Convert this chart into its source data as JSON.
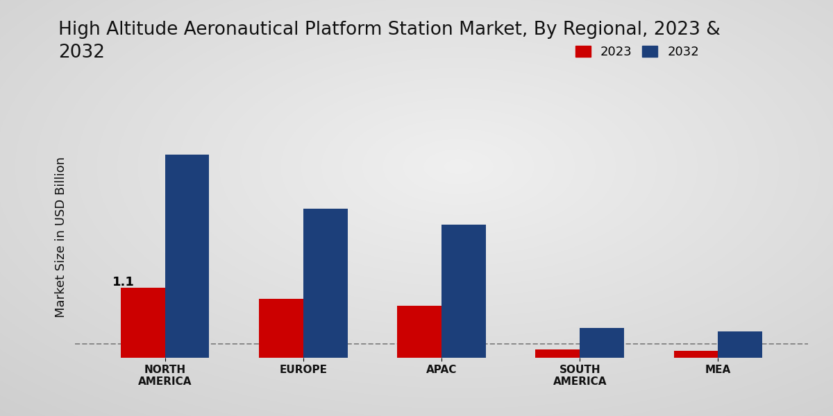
{
  "title": "High Altitude Aeronautical Platform Station Market, By Regional, 2023 &\n2032",
  "ylabel": "Market Size in USD Billion",
  "categories": [
    "NORTH\nAMERICA",
    "EUROPE",
    "APAC",
    "SOUTH\nAMERICA",
    "MEA"
  ],
  "values_2023": [
    1.1,
    0.93,
    0.82,
    0.13,
    0.11
  ],
  "values_2032": [
    3.2,
    2.35,
    2.1,
    0.47,
    0.42
  ],
  "color_2023": "#cc0000",
  "color_2032": "#1c3f7a",
  "bar_label": "1.1",
  "legend_labels": [
    "2023",
    "2032"
  ],
  "title_fontsize": 19,
  "axis_label_fontsize": 13,
  "tick_fontsize": 11,
  "legend_fontsize": 13,
  "bar_width": 0.32,
  "ylim": [
    0,
    3.8
  ],
  "dashed_line_y": 0.22,
  "bg_color": "#e8e8e8"
}
